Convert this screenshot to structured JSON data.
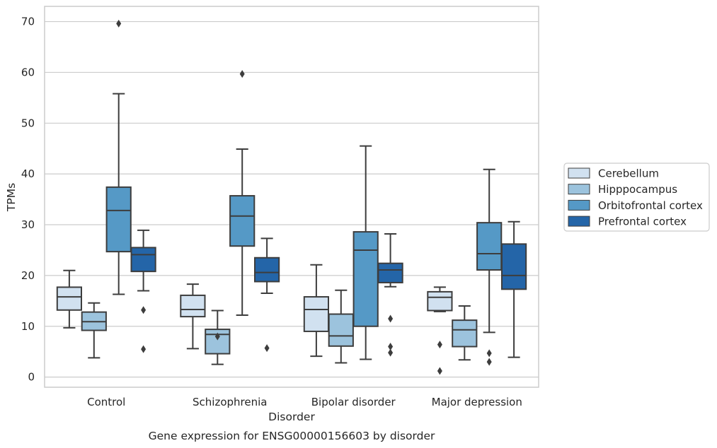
{
  "chart_data": {
    "type": "box",
    "title": "",
    "caption": "Gene expression for ENSG00000156603 by disorder",
    "xlabel": "Disorder",
    "ylabel": "TPMs",
    "ylim": [
      -2,
      73
    ],
    "yticks": [
      0,
      10,
      20,
      30,
      40,
      50,
      60,
      70
    ],
    "grid": "horizontal",
    "legend_position": "right",
    "categories": [
      "Control",
      "Schizophrenia",
      "Bipolar disorder",
      "Major depression"
    ],
    "series": [
      {
        "name": "Cerebellum",
        "color": "#d1e1f0",
        "boxes": [
          {
            "whislo": 9.7,
            "q1": 13.2,
            "med": 15.8,
            "q3": 17.7,
            "whishi": 21.0,
            "fliers": []
          },
          {
            "whislo": 5.6,
            "q1": 11.9,
            "med": 13.3,
            "q3": 16.1,
            "whishi": 18.3,
            "fliers": []
          },
          {
            "whislo": 4.1,
            "q1": 9.0,
            "med": 13.3,
            "q3": 15.8,
            "whishi": 22.1,
            "fliers": []
          },
          {
            "whislo": 12.9,
            "q1": 13.1,
            "med": 15.7,
            "q3": 16.8,
            "whishi": 17.7,
            "fliers": [
              6.4,
              1.2
            ]
          }
        ]
      },
      {
        "name": "Hipppocampus",
        "color": "#9cc3dd",
        "boxes": [
          {
            "whislo": 3.8,
            "q1": 9.2,
            "med": 10.9,
            "q3": 12.8,
            "whishi": 14.6,
            "fliers": []
          },
          {
            "whislo": 2.5,
            "q1": 4.6,
            "med": 8.4,
            "q3": 9.4,
            "whishi": 13.1,
            "fliers": [
              8.0
            ]
          },
          {
            "whislo": 2.8,
            "q1": 6.1,
            "med": 8.1,
            "q3": 12.4,
            "whishi": 17.1,
            "fliers": []
          },
          {
            "whislo": 3.4,
            "q1": 6.0,
            "med": 9.3,
            "q3": 11.2,
            "whishi": 14.0,
            "fliers": []
          }
        ]
      },
      {
        "name": "Orbitofrontal cortex",
        "color": "#5599c6",
        "boxes": [
          {
            "whislo": 16.3,
            "q1": 24.7,
            "med": 32.8,
            "q3": 37.4,
            "whishi": 55.8,
            "fliers": [
              69.6
            ]
          },
          {
            "whislo": 12.2,
            "q1": 25.8,
            "med": 31.7,
            "q3": 35.7,
            "whishi": 44.9,
            "fliers": [
              59.7
            ]
          },
          {
            "whislo": 3.5,
            "q1": 10.0,
            "med": 25.0,
            "q3": 28.6,
            "whishi": 45.5,
            "fliers": []
          },
          {
            "whislo": 8.8,
            "q1": 21.1,
            "med": 24.3,
            "q3": 30.4,
            "whishi": 40.9,
            "fliers": [
              4.7,
              3.0
            ]
          }
        ]
      },
      {
        "name": "Prefrontal cortex",
        "color": "#2465a8",
        "boxes": [
          {
            "whislo": 17.0,
            "q1": 20.8,
            "med": 24.1,
            "q3": 25.5,
            "whishi": 28.9,
            "fliers": [
              13.2,
              5.5
            ]
          },
          {
            "whislo": 16.5,
            "q1": 18.8,
            "med": 20.6,
            "q3": 23.5,
            "whishi": 27.3,
            "fliers": [
              5.7
            ]
          },
          {
            "whislo": 17.8,
            "q1": 18.6,
            "med": 21.1,
            "q3": 22.4,
            "whishi": 28.2,
            "fliers": [
              11.5,
              6.0,
              4.8
            ]
          },
          {
            "whislo": 3.9,
            "q1": 17.3,
            "med": 20.0,
            "q3": 26.2,
            "whishi": 30.6,
            "fliers": []
          }
        ]
      }
    ]
  }
}
